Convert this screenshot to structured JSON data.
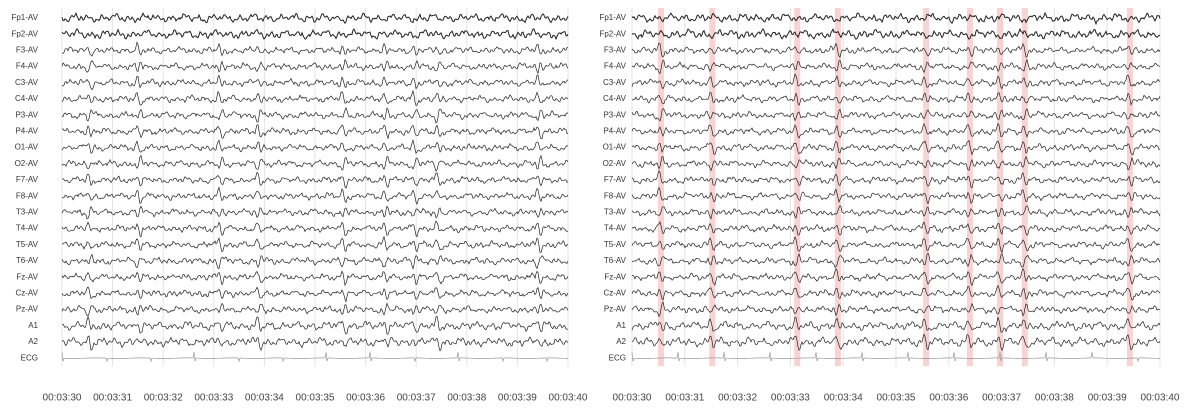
{
  "chart_data": [
    {
      "type": "eeg",
      "channels": [
        "Fp1-AV",
        "Fp2-AV",
        "F3-AV",
        "F4-AV",
        "C3-AV",
        "C4-AV",
        "P3-AV",
        "P4-AV",
        "O1-AV",
        "O2-AV",
        "F7-AV",
        "F8-AV",
        "T3-AV",
        "T4-AV",
        "T5-AV",
        "T6-AV",
        "Fz-AV",
        "Cz-AV",
        "Pz-AV",
        "A1",
        "A2",
        "ECG"
      ],
      "xlim": [
        210,
        220
      ],
      "xticks": [
        {
          "value": 210,
          "label": "00:03:30"
        },
        {
          "value": 211,
          "label": "00:03:31"
        },
        {
          "value": 212,
          "label": "00:03:32"
        },
        {
          "value": 213,
          "label": "00:03:33"
        },
        {
          "value": 214,
          "label": "00:03:34"
        },
        {
          "value": 215,
          "label": "00:03:35"
        },
        {
          "value": 216,
          "label": "00:03:36"
        },
        {
          "value": 217,
          "label": "00:03:37"
        },
        {
          "value": 218,
          "label": "00:03:38"
        },
        {
          "value": 219,
          "label": "00:03:39"
        },
        {
          "value": 220,
          "label": "00:03:40"
        }
      ]
    },
    {
      "type": "eeg",
      "channels": [
        "Fp1-AV",
        "Fp2-AV",
        "F3-AV",
        "F4-AV",
        "C3-AV",
        "C4-AV",
        "P3-AV",
        "P4-AV",
        "O1-AV",
        "O2-AV",
        "F7-AV",
        "F8-AV",
        "T3-AV",
        "T4-AV",
        "T5-AV",
        "T6-AV",
        "Fz-AV",
        "Cz-AV",
        "Pz-AV",
        "A1",
        "A2",
        "ECG"
      ],
      "xlim": [
        210,
        220
      ],
      "xticks": [
        {
          "value": 210,
          "label": "00:03:30"
        },
        {
          "value": 211,
          "label": "00:03:31"
        },
        {
          "value": 212,
          "label": "00:03:32"
        },
        {
          "value": 213,
          "label": "00:03:33"
        },
        {
          "value": 214,
          "label": "00:03:34"
        },
        {
          "value": 215,
          "label": "00:03:35"
        },
        {
          "value": 216,
          "label": "00:03:36"
        },
        {
          "value": 217,
          "label": "00:03:37"
        },
        {
          "value": 218,
          "label": "00:03:38"
        },
        {
          "value": 219,
          "label": "00:03:39"
        },
        {
          "value": 220,
          "label": "00:03:40"
        }
      ],
      "highlights": [
        210.55,
        211.52,
        213.13,
        213.9,
        215.57,
        216.4,
        216.97,
        217.44,
        219.43
      ],
      "highlight_color": "#f8c8c8"
    }
  ]
}
